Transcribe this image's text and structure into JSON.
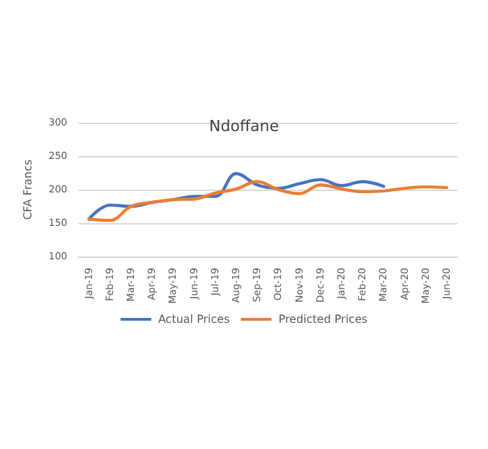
{
  "chart_data": {
    "type": "line",
    "title": "Ndoffane",
    "ylabel": "CFA Francs",
    "categories": [
      "Jan-19",
      "Feb-19",
      "Mar-19",
      "Apr-19",
      "May-19",
      "Jun-19",
      "Jul-19",
      "Aug-19",
      "Sep-19",
      "Oct-19",
      "Nov-19",
      "Dec-19",
      "Jan-20",
      "Feb-20",
      "Mar-20",
      "Apr-20",
      "May-20",
      "Jun-20"
    ],
    "series": [
      {
        "name": "Actual Prices",
        "color": "#4472c4",
        "values": [
          156,
          177,
          175,
          181,
          185,
          190,
          190,
          224,
          207,
          202,
          209,
          215,
          206,
          212,
          205,
          null,
          null,
          null
        ]
      },
      {
        "name": "Predicted Prices",
        "color": "#ed7d31",
        "values": [
          156,
          154,
          175,
          181,
          185,
          186,
          195,
          201,
          212,
          200,
          194,
          207,
          201,
          197,
          198,
          202,
          204,
          203
        ]
      }
    ],
    "ylim": [
      100,
      300
    ],
    "yticks": [
      100,
      150,
      200,
      250,
      300
    ],
    "grid": "y",
    "legend": "bottom",
    "marker": "none",
    "line_style": "solid"
  }
}
